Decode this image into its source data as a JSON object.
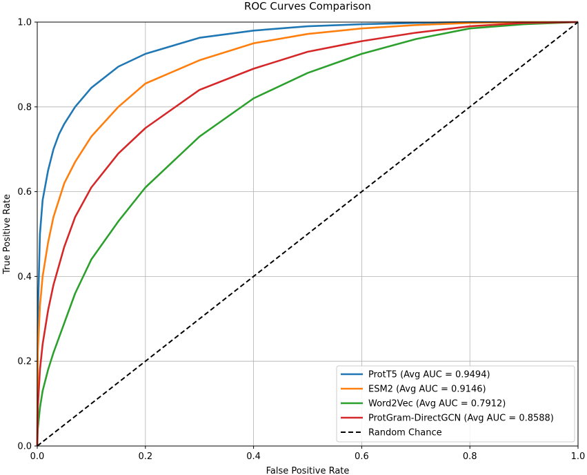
{
  "chart_data": {
    "type": "line",
    "title": "ROC Curves Comparison",
    "xlabel": "False Positive Rate",
    "ylabel": "True Positive Rate",
    "xlim": [
      0.0,
      1.0
    ],
    "ylim": [
      0.0,
      1.0
    ],
    "grid": true,
    "legend_position": "bottom-right",
    "xticks": [
      "0.0",
      "0.2",
      "0.4",
      "0.6",
      "0.8",
      "1.0"
    ],
    "yticks": [
      "0.0",
      "0.2",
      "0.4",
      "0.6",
      "0.8",
      "1.0"
    ],
    "series": [
      {
        "name": "ProtT5 (Avg AUC = 0.9494)",
        "color": "#1f77b4",
        "x": [
          0,
          0.001,
          0.005,
          0.01,
          0.02,
          0.03,
          0.04,
          0.05,
          0.07,
          0.1,
          0.15,
          0.2,
          0.3,
          0.4,
          0.5,
          0.6,
          0.7,
          0.8,
          0.9,
          1.0
        ],
        "y": [
          0,
          0.3,
          0.5,
          0.58,
          0.65,
          0.7,
          0.735,
          0.76,
          0.8,
          0.845,
          0.895,
          0.925,
          0.963,
          0.98,
          0.99,
          0.995,
          0.998,
          1.0,
          1.0,
          1.0
        ]
      },
      {
        "name": "ESM2 (Avg AUC = 0.9146)",
        "color": "#ff7f0e",
        "x": [
          0,
          0.001,
          0.005,
          0.01,
          0.02,
          0.03,
          0.05,
          0.07,
          0.1,
          0.15,
          0.2,
          0.3,
          0.4,
          0.5,
          0.6,
          0.7,
          0.8,
          0.9,
          1.0
        ],
        "y": [
          0,
          0.22,
          0.33,
          0.4,
          0.48,
          0.54,
          0.62,
          0.67,
          0.73,
          0.8,
          0.855,
          0.91,
          0.95,
          0.972,
          0.985,
          0.993,
          0.998,
          1.0,
          1.0
        ]
      },
      {
        "name": "Word2Vec (Avg AUC = 0.7912)",
        "color": "#2ca02c",
        "x": [
          0,
          0.001,
          0.005,
          0.01,
          0.02,
          0.03,
          0.05,
          0.07,
          0.1,
          0.15,
          0.2,
          0.3,
          0.4,
          0.5,
          0.6,
          0.7,
          0.8,
          0.9,
          1.0
        ],
        "y": [
          0,
          0.04,
          0.09,
          0.13,
          0.18,
          0.22,
          0.29,
          0.36,
          0.44,
          0.53,
          0.61,
          0.73,
          0.82,
          0.88,
          0.925,
          0.96,
          0.985,
          0.995,
          1.0
        ]
      },
      {
        "name": "ProtGram-DirectGCN (Avg AUC = 0.8588)",
        "color": "#d62728",
        "x": [
          0,
          0.001,
          0.005,
          0.01,
          0.02,
          0.03,
          0.05,
          0.07,
          0.1,
          0.15,
          0.2,
          0.3,
          0.4,
          0.5,
          0.6,
          0.7,
          0.8,
          0.9,
          1.0
        ],
        "y": [
          0,
          0.09,
          0.18,
          0.24,
          0.32,
          0.38,
          0.47,
          0.54,
          0.61,
          0.69,
          0.75,
          0.84,
          0.89,
          0.93,
          0.955,
          0.975,
          0.99,
          0.998,
          1.0
        ]
      },
      {
        "name": "Random Chance",
        "color": "#000000",
        "dashed": true,
        "x": [
          0,
          1
        ],
        "y": [
          0,
          1
        ]
      }
    ]
  }
}
